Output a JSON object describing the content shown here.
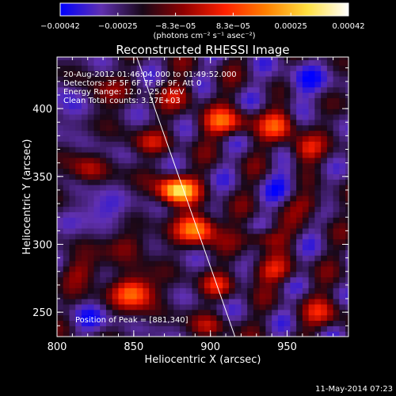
{
  "chart_data": {
    "type": "heatmap",
    "title": "Reconstructed RHESSI Image",
    "xlabel": "Heliocentric X (arcsec)",
    "ylabel": "Heliocentric Y (arcsec)",
    "xlim": [
      800,
      990
    ],
    "ylim": [
      232,
      438
    ],
    "xticks": [
      800,
      850,
      900,
      950
    ],
    "yticks": [
      250,
      300,
      350,
      400
    ],
    "colorbar": {
      "label": "(photons cm⁻² s⁻¹ asec⁻²)",
      "range": [
        -0.00042,
        0.00042
      ],
      "tick_labels": [
        "−0.00042",
        "−0.00025",
        "−8.3e−05",
        "8.3e−05",
        "0.00025",
        "0.00042"
      ],
      "colormap": [
        "#0000ff",
        "#6030b0",
        "#180818",
        "#900000",
        "#ff2000",
        "#ff8000",
        "#ffe040",
        "#ffffff"
      ]
    },
    "info_lines": [
      "20-Aug-2012 01:46:04.000 to 01:49:52.000",
      "Detectors: 3F 5F 6F 7F 8F 9F, Att 0",
      "Energy Range: 12.0 - 25.0 keV",
      "Clean    Total counts: 3.37E+03"
    ],
    "peak_label": "Position of Peak = [881,340]",
    "peak": [
      881,
      340
    ],
    "limb_line": [
      [
        852,
        438
      ],
      [
        916,
        232
      ]
    ],
    "sources": [
      {
        "x": 878,
        "y": 340,
        "amp": 1.0,
        "sx": 9,
        "sy": 7
      },
      {
        "x": 892,
        "y": 312,
        "amp": 0.82,
        "sx": 9,
        "sy": 8
      },
      {
        "x": 850,
        "y": 265,
        "amp": 0.72,
        "sx": 10,
        "sy": 8
      },
      {
        "x": 910,
        "y": 390,
        "amp": 0.55,
        "sx": 12,
        "sy": 7
      },
      {
        "x": 945,
        "y": 388,
        "amp": 0.5,
        "sx": 8,
        "sy": 8
      },
      {
        "x": 962,
        "y": 370,
        "amp": 0.42,
        "sx": 8,
        "sy": 7
      },
      {
        "x": 935,
        "y": 305,
        "amp": 0.4,
        "sx": 10,
        "sy": 5
      },
      {
        "x": 940,
        "y": 280,
        "amp": 0.38,
        "sx": 12,
        "sy": 6
      },
      {
        "x": 905,
        "y": 270,
        "amp": 0.35,
        "sx": 8,
        "sy": 6
      },
      {
        "x": 845,
        "y": 300,
        "amp": 0.3,
        "sx": 10,
        "sy": 7
      },
      {
        "x": 975,
        "y": 250,
        "amp": 0.33,
        "sx": 10,
        "sy": 8
      },
      {
        "x": 965,
        "y": 330,
        "amp": 0.3,
        "sx": 9,
        "sy": 6
      },
      {
        "x": 830,
        "y": 410,
        "amp": 0.25,
        "sx": 10,
        "sy": 8
      },
      {
        "x": 880,
        "y": 410,
        "amp": 0.3,
        "sx": 9,
        "sy": 7
      },
      {
        "x": 860,
        "y": 375,
        "amp": 0.28,
        "sx": 10,
        "sy": 6
      },
      {
        "x": 820,
        "y": 355,
        "amp": 0.32,
        "sx": 8,
        "sy": 7
      },
      {
        "x": 815,
        "y": 280,
        "amp": 0.3,
        "sx": 9,
        "sy": 7
      },
      {
        "x": 900,
        "y": 240,
        "amp": 0.28,
        "sx": 8,
        "sy": 6
      },
      {
        "x": 830,
        "y": 325,
        "amp": -0.3,
        "sx": 12,
        "sy": 8
      },
      {
        "x": 960,
        "y": 420,
        "amp": -0.25,
        "sx": 12,
        "sy": 10
      },
      {
        "x": 820,
        "y": 245,
        "amp": -0.2,
        "sx": 10,
        "sy": 8
      },
      {
        "x": 950,
        "y": 345,
        "amp": -0.2,
        "sx": 10,
        "sy": 8
      },
      {
        "x": 810,
        "y": 400,
        "amp": -0.25,
        "sx": 8,
        "sy": 10
      }
    ]
  },
  "footer": {
    "timestamp": "11-May-2014 07:23"
  }
}
